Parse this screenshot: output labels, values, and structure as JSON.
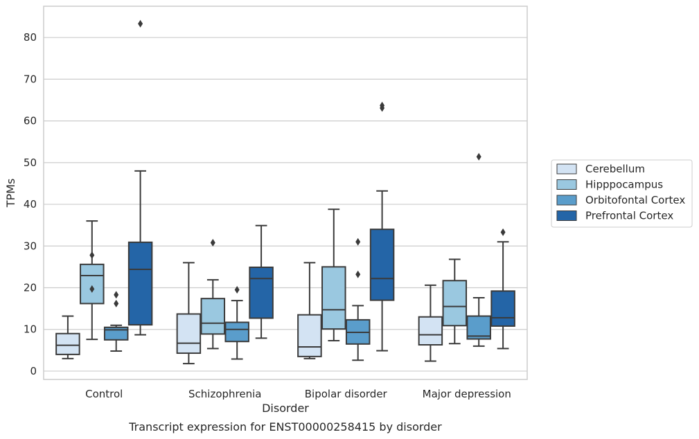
{
  "chart_data": {
    "type": "box",
    "title": "",
    "caption": "Transcript expression for ENST00000258415 by disorder",
    "xlabel": "Disorder",
    "ylabel": "TPMs",
    "ylim": [
      -2,
      87.5
    ],
    "yticks": [
      0,
      10,
      20,
      30,
      40,
      50,
      60,
      70,
      80
    ],
    "grid": "horizontal",
    "legend_position": "right",
    "categories": [
      "Control",
      "Schizophrenia",
      "Bipolar disorder",
      "Major depression"
    ],
    "series": [
      {
        "name": "Cerebellum",
        "color": "#d3e3f3",
        "boxes": [
          {
            "whislo": 3.0,
            "q1": 4.0,
            "med": 6.2,
            "q3": 9.0,
            "whishi": 13.2,
            "fliers": []
          },
          {
            "whislo": 1.8,
            "q1": 4.3,
            "med": 6.7,
            "q3": 13.7,
            "whishi": 26.0,
            "fliers": []
          },
          {
            "whislo": 3.0,
            "q1": 3.5,
            "med": 5.8,
            "q3": 13.5,
            "whishi": 26.0,
            "fliers": []
          },
          {
            "whislo": 2.4,
            "q1": 6.3,
            "med": 8.7,
            "q3": 13.0,
            "whishi": 20.6,
            "fliers": []
          }
        ]
      },
      {
        "name": "Hipppocampus",
        "color": "#9ac8e0",
        "boxes": [
          {
            "whislo": 7.6,
            "q1": 16.2,
            "med": 22.9,
            "q3": 25.6,
            "whishi": 36.0,
            "fliers": [
              19.7,
              27.8
            ]
          },
          {
            "whislo": 5.4,
            "q1": 8.9,
            "med": 11.5,
            "q3": 17.4,
            "whishi": 21.9,
            "fliers": [
              30.8
            ]
          },
          {
            "whislo": 7.3,
            "q1": 10.1,
            "med": 14.7,
            "q3": 25.0,
            "whishi": 38.8,
            "fliers": []
          },
          {
            "whislo": 6.6,
            "q1": 10.9,
            "med": 15.5,
            "q3": 21.7,
            "whishi": 26.8,
            "fliers": []
          }
        ]
      },
      {
        "name": "Orbitofontal Cortex",
        "color": "#5a9dcb",
        "boxes": [
          {
            "whislo": 4.8,
            "q1": 7.5,
            "med": 9.9,
            "q3": 10.5,
            "whishi": 11.0,
            "fliers": [
              16.2,
              18.3
            ]
          },
          {
            "whislo": 2.9,
            "q1": 7.1,
            "med": 10.0,
            "q3": 11.7,
            "whishi": 16.9,
            "fliers": [
              19.5
            ]
          },
          {
            "whislo": 2.6,
            "q1": 6.5,
            "med": 9.3,
            "q3": 12.3,
            "whishi": 15.7,
            "fliers": [
              23.2,
              31.0
            ]
          },
          {
            "whislo": 6.0,
            "q1": 7.7,
            "med": 8.4,
            "q3": 13.2,
            "whishi": 17.6,
            "fliers": [
              51.4
            ]
          }
        ]
      },
      {
        "name": "Prefrontal Cortex",
        "color": "#2465a7",
        "boxes": [
          {
            "whislo": 8.7,
            "q1": 11.1,
            "med": 24.4,
            "q3": 30.9,
            "whishi": 48.0,
            "fliers": [
              83.3
            ]
          },
          {
            "whislo": 7.9,
            "q1": 12.7,
            "med": 22.2,
            "q3": 24.9,
            "whishi": 34.9,
            "fliers": []
          },
          {
            "whislo": 4.9,
            "q1": 17.0,
            "med": 22.2,
            "q3": 34.0,
            "whishi": 43.2,
            "fliers": [
              63.1,
              63.7
            ]
          },
          {
            "whislo": 5.4,
            "q1": 10.8,
            "med": 12.8,
            "q3": 19.2,
            "whishi": 31.0,
            "fliers": [
              33.3
            ]
          }
        ]
      }
    ]
  }
}
